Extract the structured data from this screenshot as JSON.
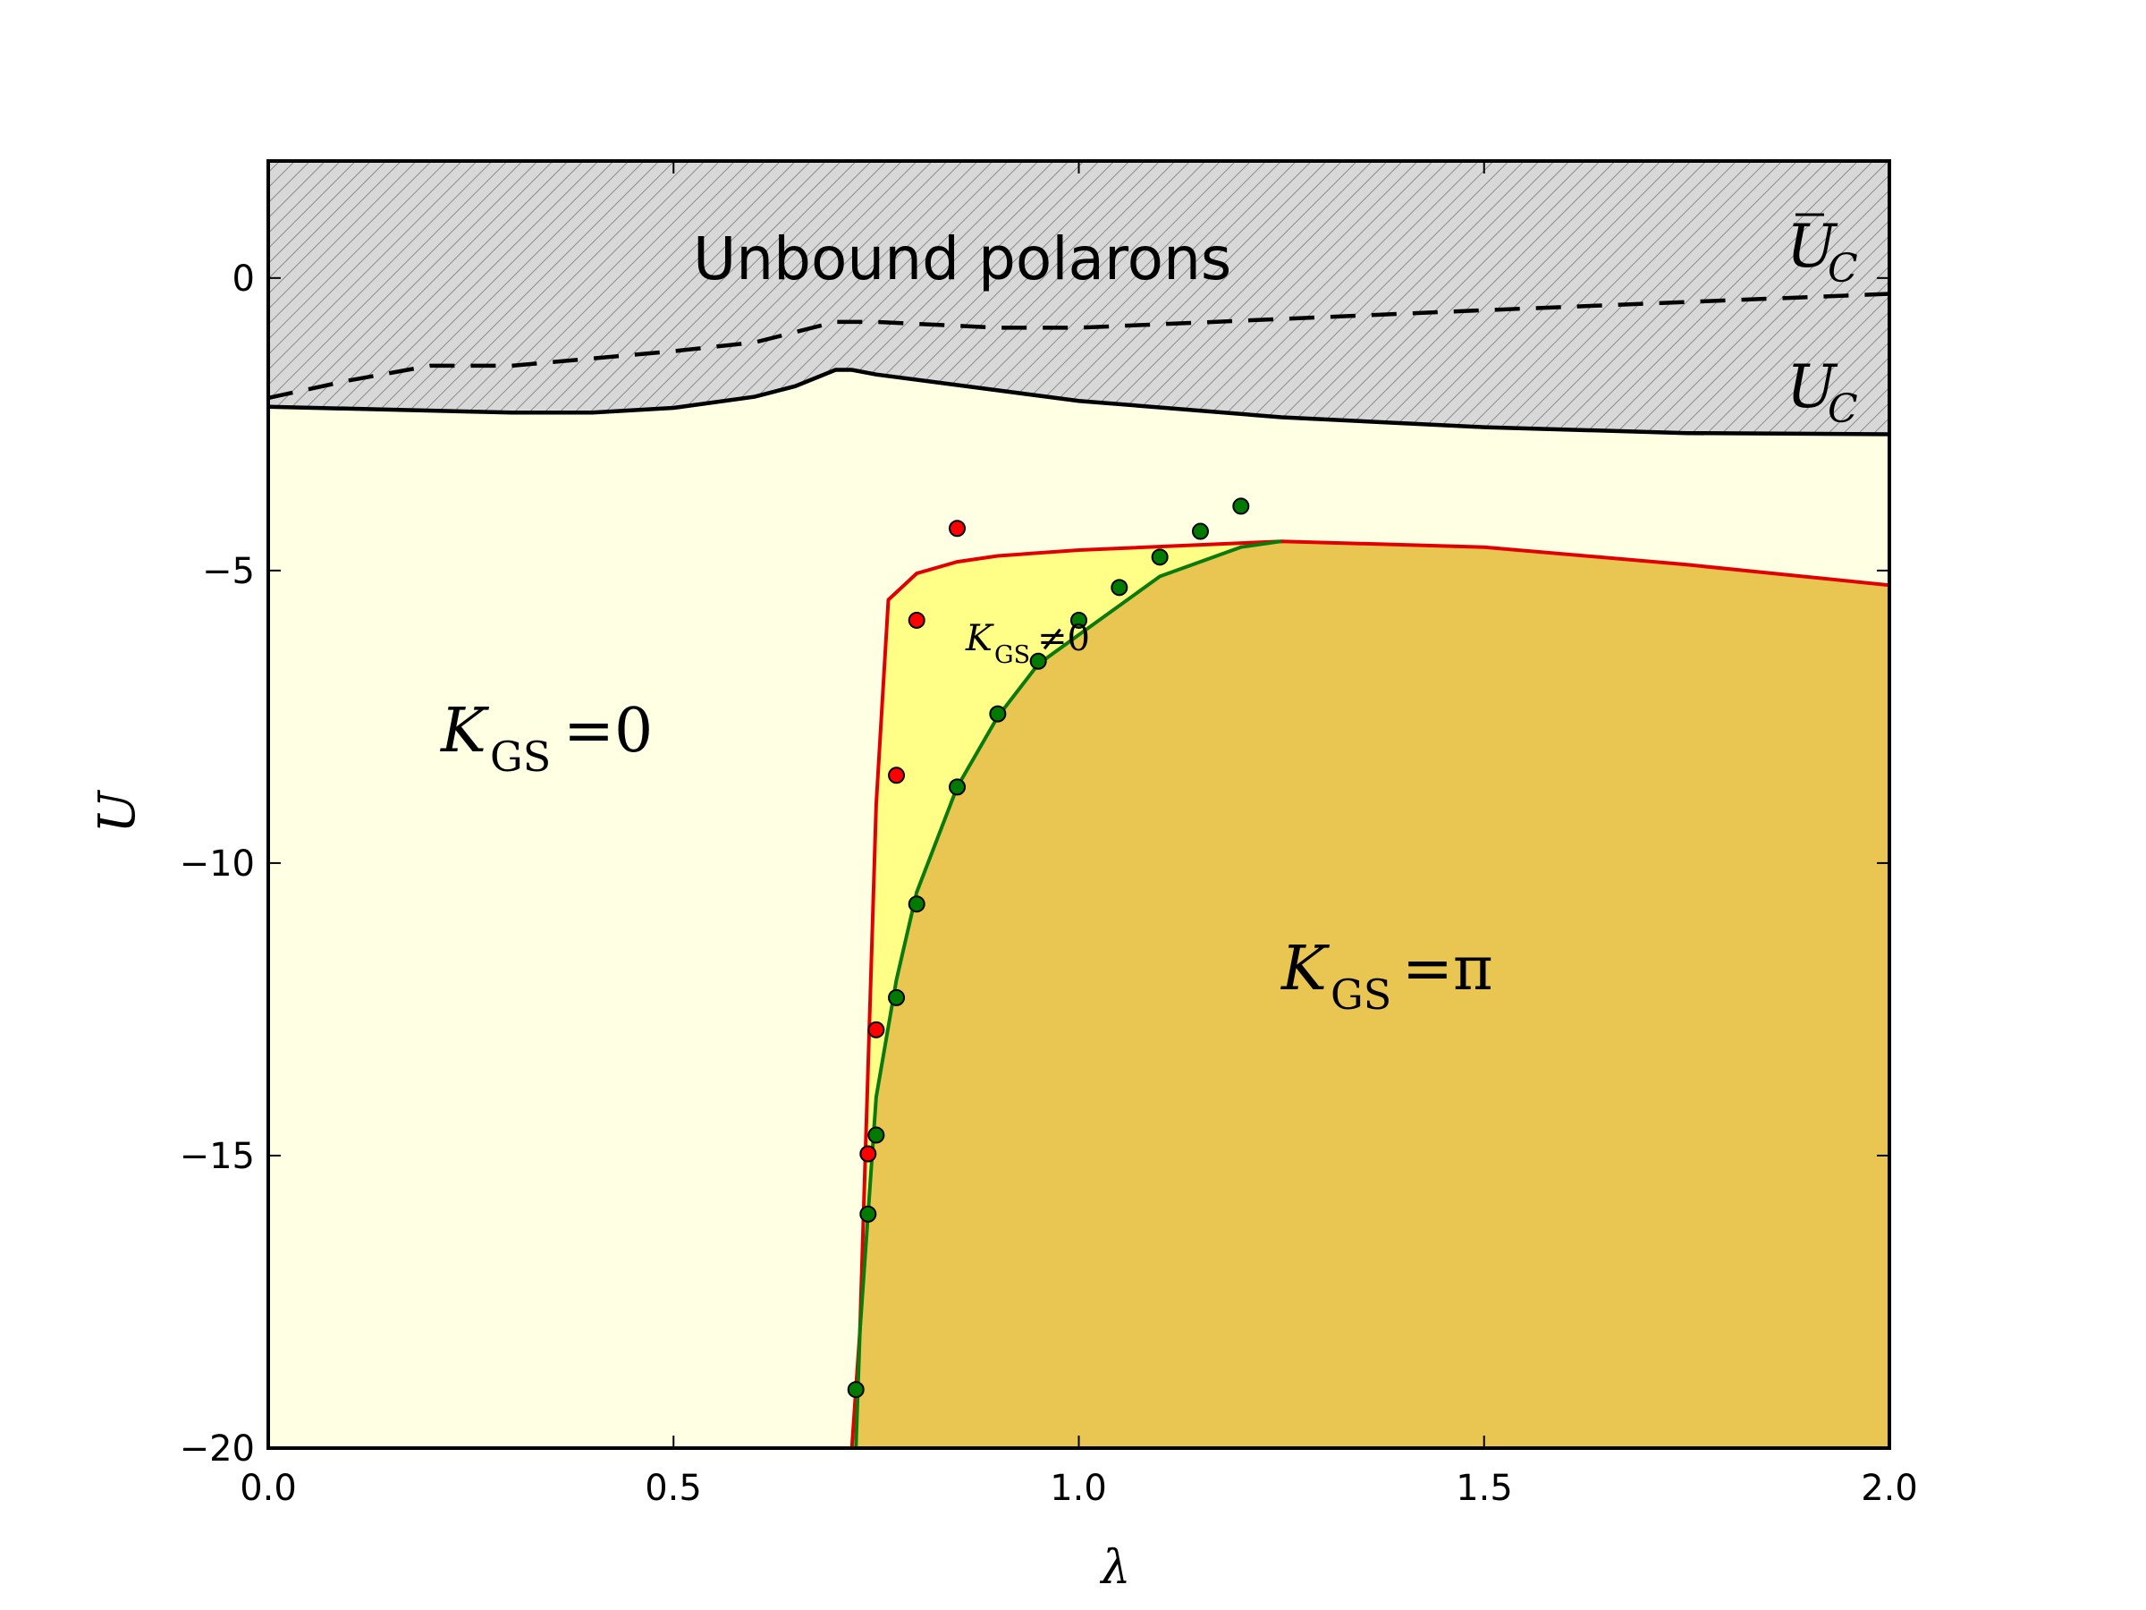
{
  "chart_data": {
    "type": "area",
    "title": "",
    "xlabel": "λ",
    "ylabel": "U",
    "xlim": [
      0.0,
      2.0
    ],
    "ylim": [
      -20,
      2
    ],
    "grid": false,
    "x_ticks": [
      "0.0",
      "0.5",
      "1.0",
      "1.5",
      "2.0"
    ],
    "y_ticks": [
      "0",
      "−5",
      "−10",
      "−15",
      "−20"
    ],
    "y_tick_values": [
      0,
      -5,
      -10,
      -15,
      -20
    ],
    "x_tick_values": [
      0.0,
      0.5,
      1.0,
      1.5,
      2.0
    ],
    "regions": [
      {
        "name": "Unbound polarons",
        "color": "#d8d8d8",
        "hatch": "////"
      },
      {
        "name": "K_GS = 0",
        "color": "#ffffe4"
      },
      {
        "name": "K_GS ≠ 0",
        "color": "#ffff88"
      },
      {
        "name": "K_GS = π",
        "color": "#e9c652"
      }
    ],
    "series": [
      {
        "name": "U_C",
        "style": "solid",
        "color": "#000000",
        "x": [
          0.0,
          0.3,
          0.4,
          0.5,
          0.6,
          0.65,
          0.7,
          0.72,
          0.75,
          1.0,
          1.25,
          1.5,
          1.75,
          2.0
        ],
        "y": [
          -2.2,
          -2.3,
          -2.3,
          -2.22,
          -2.03,
          -1.85,
          -1.57,
          -1.57,
          -1.65,
          -2.1,
          -2.38,
          -2.55,
          -2.65,
          -2.67
        ]
      },
      {
        "name": "Ū_C",
        "style": "dashed",
        "color": "#000000",
        "x": [
          0.0,
          0.1,
          0.2,
          0.3,
          0.5,
          0.6,
          0.7,
          0.75,
          0.9,
          1.0,
          1.5,
          2.0
        ],
        "y": [
          -2.05,
          -1.75,
          -1.5,
          -1.5,
          -1.25,
          -1.1,
          -0.75,
          -0.75,
          -0.85,
          -0.85,
          -0.55,
          -0.27
        ]
      },
      {
        "name": "K_GS ≠ 0 boundary",
        "style": "solid",
        "color": "#e00000",
        "x": [
          0.72,
          0.73,
          0.75,
          0.765,
          0.8,
          0.85,
          0.9,
          1.0,
          1.25,
          1.5,
          1.75,
          2.0
        ],
        "y": [
          -20,
          -18,
          -9,
          -5.5,
          -5.05,
          -4.85,
          -4.75,
          -4.65,
          -4.5,
          -4.6,
          -4.9,
          -5.25
        ]
      },
      {
        "name": "K_GS = π boundary",
        "style": "solid",
        "color": "#0a7a0a",
        "x": [
          0.725,
          0.73,
          0.75,
          0.775,
          0.8,
          0.85,
          0.9,
          0.95,
          1.0,
          1.1,
          1.2,
          1.25
        ],
        "y": [
          -20,
          -18,
          -14,
          -12,
          -10.5,
          -8.7,
          -7.5,
          -6.6,
          -6.1,
          -5.1,
          -4.6,
          -4.5
        ]
      }
    ],
    "scatter": [
      {
        "name": "red points",
        "color": "#ff0000",
        "x": [
          0.85,
          0.8,
          0.775,
          0.75,
          0.74
        ],
        "y": [
          -4.28,
          -5.85,
          -8.5,
          -12.85,
          -14.97
        ]
      },
      {
        "name": "green points",
        "color": "#007a00",
        "x": [
          0.725,
          0.74,
          0.75,
          0.775,
          0.8,
          0.85,
          0.9,
          0.95,
          1.0,
          1.05,
          1.1,
          1.15,
          1.2
        ],
        "y": [
          -19.0,
          -16.0,
          -14.65,
          -12.3,
          -10.7,
          -8.7,
          -7.45,
          -6.55,
          -5.85,
          -5.29,
          -4.77,
          -4.33,
          -3.9
        ]
      }
    ],
    "annotations": [
      {
        "text": "Unbound polarons",
        "x": 0.85,
        "y": 0.3
      },
      {
        "text": "Ū_C",
        "x": 1.86,
        "y": 0.3
      },
      {
        "text": "U_C",
        "x": 1.86,
        "y": -2.0
      },
      {
        "text": "K_GS = 0",
        "x": 0.33,
        "y": -7.7
      },
      {
        "text": "K_GS ≠ 0",
        "x": 0.9,
        "y": -6.1
      },
      {
        "text": "K_GS = π",
        "x": 1.33,
        "y": -11.9
      }
    ]
  },
  "labels": {
    "xlabel": "λ",
    "ylabel": "U",
    "unbound": "Unbound polarons",
    "uc_bar_main": "U",
    "uc_bar_sub": "C",
    "uc_main": "U",
    "uc_sub": "C",
    "k0_main": "K",
    "k0_sub": "GS",
    "k0_rest": "=0",
    "kne_main": "K",
    "kne_sub": "GS",
    "kne_rest": "≠0",
    "kpi_main": "K",
    "kpi_sub": "GS",
    "kpi_rest": "=π"
  },
  "ticks": {
    "x": [
      "0.0",
      "0.5",
      "1.0",
      "1.5",
      "2.0"
    ],
    "y": [
      "0",
      "−5",
      "−10",
      "−15",
      "−20"
    ]
  },
  "colors": {
    "unbound_fill": "#d8d8d8",
    "k0_fill": "#ffffe4",
    "kne_fill": "#ffff88",
    "kpi_fill": "#e9c652",
    "red": "#e00000",
    "green": "#0a7a0a"
  }
}
